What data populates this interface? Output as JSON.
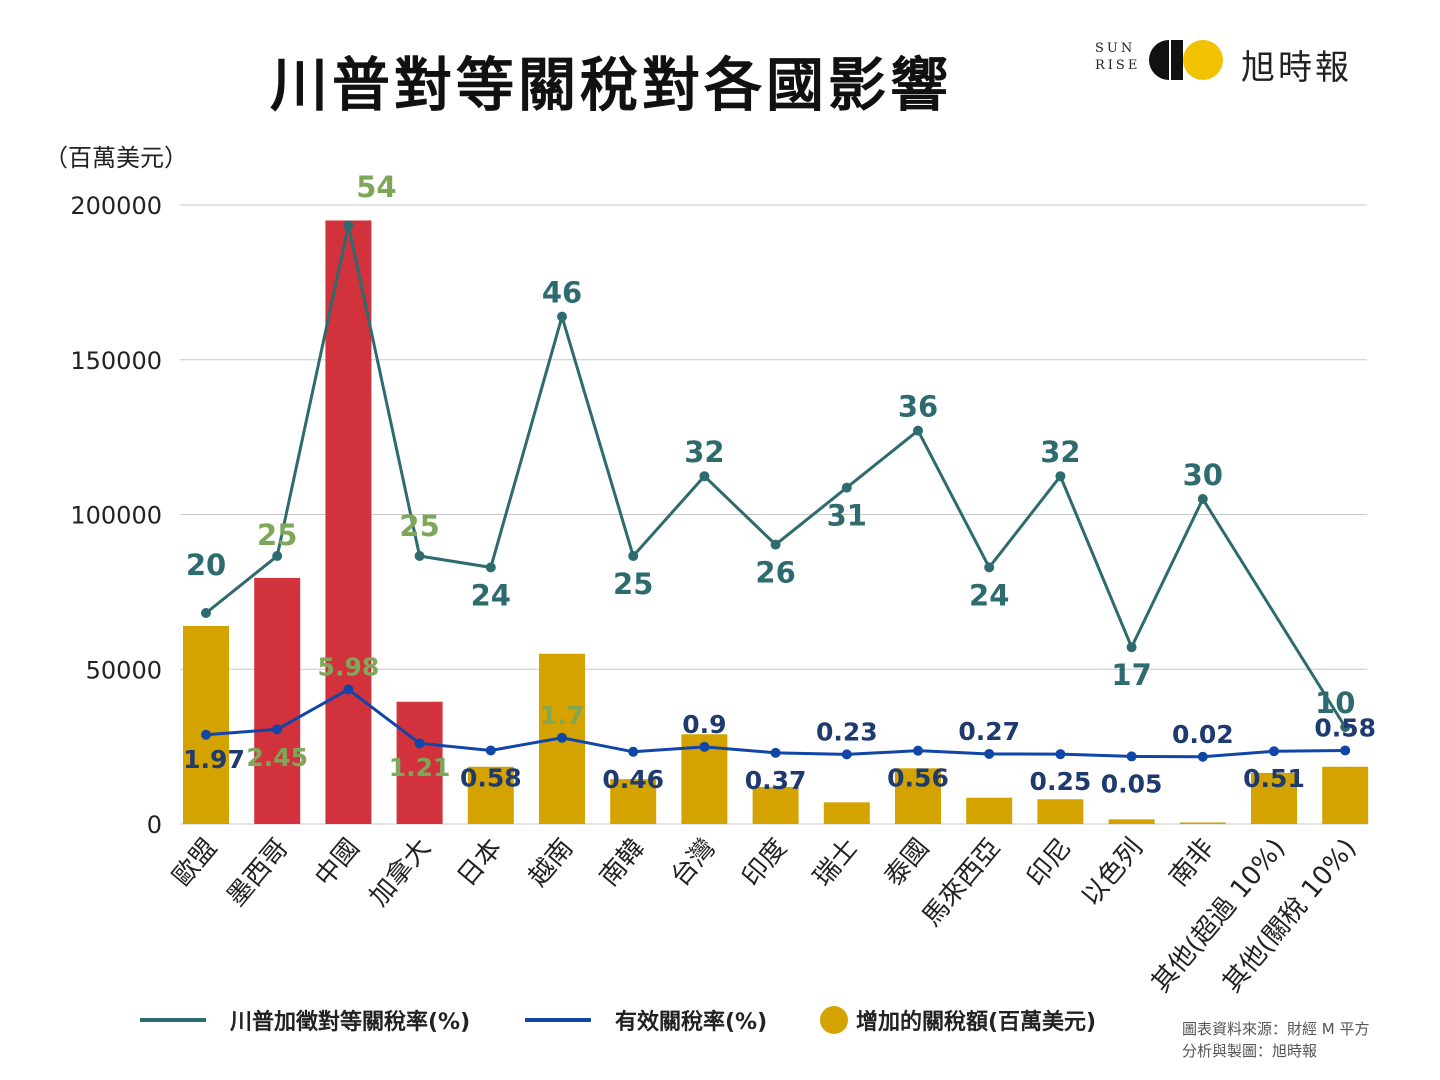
{
  "title": "川普對等關稅對各國影響",
  "logo": {
    "sun_text_top": "SUN",
    "sun_text_bottom": "RISE",
    "brand": "旭時報"
  },
  "y_unit_label": "（百萬美元）",
  "source": {
    "line1": "圖表資料來源：財經 M 平方",
    "line2": "分析與製圖：旭時報"
  },
  "legend": {
    "reciprocal": "川普加徵對等關稅率(%)",
    "effective": "有效關稅率(%)",
    "amount": "增加的關稅額(百萬美元)"
  },
  "colors": {
    "bar_gold": "#D4A300",
    "bar_red": "#D2323C",
    "line_teal": "#2E6B6E",
    "line_blue": "#1046A8",
    "label_green": "#7FA75A",
    "label_teal": "#2E6B6E",
    "label_navy": "#1E3A6E",
    "grid": "#c8c8c8",
    "logo_black": "#111111",
    "logo_yellow": "#F2C200"
  },
  "chart_data": {
    "type": "bar",
    "categories": [
      "歐盟",
      "墨西哥",
      "中國",
      "加拿大",
      "日本",
      "越南",
      "南韓",
      "台灣",
      "印度",
      "瑞士",
      "泰國",
      "馬來西亞",
      "印尼",
      "以色列",
      "南非",
      "其他(超過 10%)",
      "其他(關稅 10%)"
    ],
    "yticks": [
      "200000",
      "150000",
      "100000",
      "50000",
      "0"
    ],
    "ylim": [
      0,
      200000
    ],
    "grid": true,
    "legend_position": "bottom",
    "series": [
      {
        "name": "增加的關稅額(百萬美元)",
        "kind": "bar",
        "values": [
          64000,
          79500,
          195000,
          39500,
          18500,
          55000,
          14500,
          29000,
          12000,
          7000,
          18000,
          8500,
          8000,
          1500,
          500,
          16500,
          18500
        ],
        "highlight": [
          false,
          true,
          true,
          true,
          false,
          false,
          false,
          false,
          false,
          false,
          false,
          false,
          false,
          false,
          false,
          false,
          false
        ]
      },
      {
        "name": "川普加徵對等關稅率(%)",
        "kind": "line",
        "values": [
          20,
          25,
          54,
          25,
          24,
          46,
          25,
          32,
          26,
          31,
          36,
          24,
          32,
          17,
          30,
          null,
          10
        ],
        "labels": [
          "20",
          "25",
          "54",
          "25",
          "24",
          "46",
          "25",
          "32",
          "26",
          "31",
          "36",
          "24",
          "32",
          "17",
          "30",
          "",
          "10"
        ]
      },
      {
        "name": "有效關稅率(%)",
        "kind": "line",
        "values": [
          1.97,
          2.45,
          5.98,
          1.21,
          0.58,
          1.7,
          0.46,
          0.9,
          0.37,
          0.23,
          0.56,
          0.27,
          0.25,
          0.05,
          0.02,
          0.51,
          0.58
        ],
        "labels": [
          "1.97",
          "2.45",
          "5.98",
          "1.21",
          "0.58",
          "1.7",
          "0.46",
          "0.9",
          "0.37",
          "0.23",
          "0.56",
          "0.27",
          "0.25",
          "0.05",
          "0.02",
          "0.51",
          "0.58"
        ]
      }
    ]
  }
}
